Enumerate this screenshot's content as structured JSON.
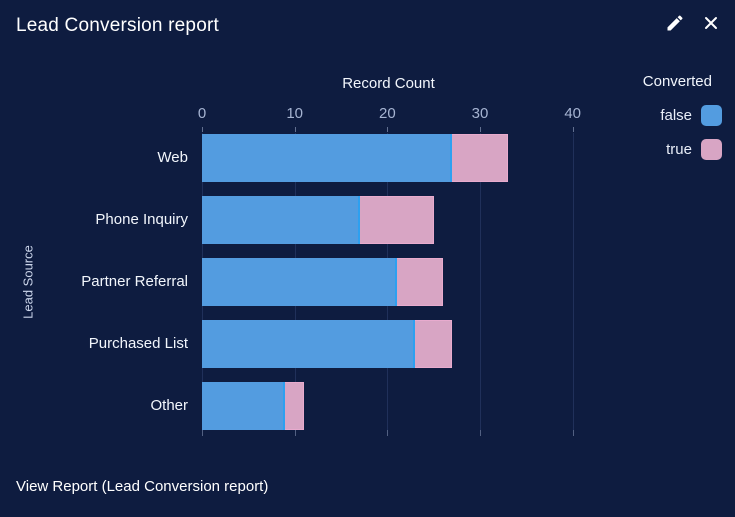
{
  "header": {
    "title": "Lead Conversion report",
    "actions": {
      "edit": "Edit",
      "close": "Close"
    }
  },
  "chart_data": {
    "type": "bar",
    "orientation": "horizontal",
    "stacked": true,
    "title": "Lead Conversion report",
    "xlabel": "Record Count",
    "ylabel": "Lead Source",
    "categories": [
      "Web",
      "Phone Inquiry",
      "Partner Referral",
      "Purchased List",
      "Other"
    ],
    "series": [
      {
        "name": "false",
        "color": "#539CE0",
        "values": [
          27,
          17,
          21,
          23,
          9
        ]
      },
      {
        "name": "true",
        "color": "#D8A5C4",
        "values": [
          6,
          8,
          5,
          4,
          2
        ]
      }
    ],
    "x_ticks": [
      0,
      10,
      20,
      30,
      40
    ],
    "xlim": [
      0,
      45
    ],
    "grid": true,
    "legend": {
      "title": "Converted",
      "position": "top-right",
      "entries": [
        "false",
        "true"
      ]
    }
  },
  "footer": {
    "view_report": "View Report (Lead Conversion report)"
  },
  "colors": {
    "background": "#0E1C40",
    "title_text": "#FFFFFF",
    "axis_text": "#A6B4D2",
    "label_text": "#F2F6FC",
    "grid": "#20305A",
    "series_false": "#539CE0",
    "series_true": "#D8A5C4"
  }
}
